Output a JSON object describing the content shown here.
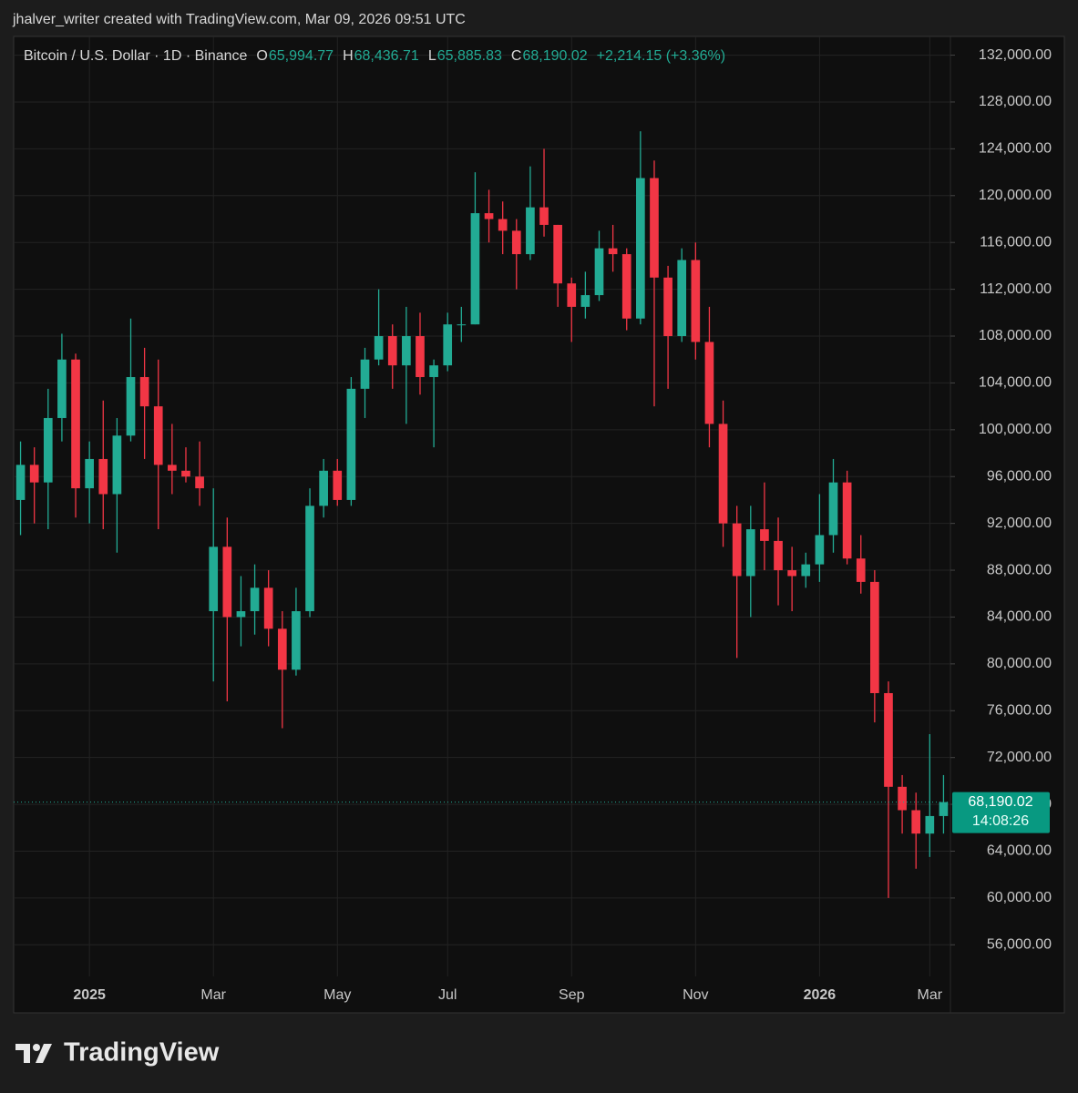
{
  "header": "jhalver_writer created with TradingView.com, Mar 09, 2026 09:51 UTC",
  "brand": "TradingView",
  "legend": {
    "symbol": "Bitcoin / U.S. Dollar · 1D · Binance",
    "items": [
      {
        "key": "O",
        "value": {
          "value": 65994.77,
          "label": "65,994.77"
        }
      },
      {
        "key": "H",
        "value": {
          "value": 68436.71,
          "label": "68,436.71"
        }
      },
      {
        "key": "L",
        "value": {
          "value": 65885.83,
          "label": "65,885.83"
        }
      },
      {
        "key": "C",
        "value": {
          "value": 68190.02,
          "label": "68,190.02"
        }
      }
    ],
    "change": "+2,214.15 (+3.36%)"
  },
  "last_price": {
    "value": 68190.02,
    "label": "68,190.02"
  },
  "countdown": "14:08:26",
  "chart_data": {
    "type": "candlestick",
    "up_color": "#22ab94",
    "down_color": "#f23645",
    "grid": true,
    "categories": [
      null,
      null,
      null,
      null,
      null,
      "2025",
      null,
      null,
      null,
      null,
      null,
      null,
      null,
      null,
      "Mar",
      null,
      null,
      null,
      null,
      null,
      null,
      null,
      null,
      "May",
      null,
      null,
      null,
      null,
      null,
      null,
      null,
      "Jul",
      null,
      null,
      null,
      null,
      null,
      null,
      null,
      null,
      "Sep",
      null,
      null,
      null,
      null,
      null,
      null,
      null,
      null,
      "Nov",
      null,
      null,
      null,
      null,
      null,
      null,
      null,
      null,
      "2026",
      null,
      null,
      null,
      null,
      null,
      null,
      null,
      "Mar",
      null
    ],
    "open": [
      94000,
      97000,
      95500,
      101000,
      106000,
      95000,
      97500,
      94500,
      99500,
      104500,
      102000,
      97000,
      96500,
      96000,
      84500,
      90000,
      84000,
      84500,
      86500,
      83000,
      79500,
      84500,
      93500,
      96500,
      94000,
      103500,
      106000,
      108000,
      105500,
      108000,
      104500,
      105500,
      109000,
      109000,
      118500,
      118000,
      117000,
      115000,
      119000,
      117500,
      112500,
      110500,
      111500,
      115500,
      115000,
      109500,
      121500,
      113000,
      108000,
      114500,
      107500,
      100500,
      92000,
      87500,
      91500,
      90500,
      88000,
      87500,
      88500,
      91000,
      95500,
      89000,
      87000,
      77500,
      69500,
      67500,
      65500,
      67000
    ],
    "high": [
      99000,
      98500,
      103500,
      108200,
      106500,
      99000,
      102500,
      101000,
      109500,
      107000,
      106000,
      100500,
      98500,
      99000,
      95000,
      92500,
      87500,
      88500,
      88000,
      84500,
      86500,
      95000,
      97500,
      97500,
      104500,
      107000,
      112000,
      109000,
      110500,
      110000,
      106000,
      110000,
      110500,
      122000,
      120500,
      119500,
      118000,
      122500,
      124000,
      117500,
      113000,
      113500,
      117000,
      117500,
      115500,
      125500,
      123000,
      114000,
      115500,
      116000,
      110500,
      102500,
      93500,
      93500,
      95500,
      92500,
      90000,
      89500,
      94500,
      97500,
      96500,
      91000,
      88000,
      78500,
      70500,
      69000,
      74000,
      70500
    ],
    "low": [
      91000,
      92000,
      91500,
      99000,
      92500,
      92000,
      91500,
      89500,
      99000,
      97500,
      91500,
      94500,
      95500,
      93500,
      78500,
      76800,
      81500,
      82500,
      81500,
      74500,
      79000,
      84000,
      92500,
      93500,
      93500,
      101000,
      105500,
      103500,
      100500,
      103000,
      98500,
      105000,
      107500,
      109000,
      116000,
      115000,
      112000,
      114500,
      116500,
      110500,
      107500,
      109500,
      111000,
      113500,
      108500,
      109000,
      102000,
      103500,
      107500,
      106000,
      98500,
      90000,
      80500,
      84000,
      88000,
      85000,
      84500,
      86500,
      87000,
      89500,
      88500,
      86000,
      75000,
      60000,
      65500,
      62500,
      63500,
      65500
    ],
    "close": [
      97000,
      95500,
      101000,
      106000,
      95000,
      97500,
      94500,
      99500,
      104500,
      102000,
      97000,
      96500,
      96000,
      95000,
      90000,
      84000,
      84500,
      86500,
      83000,
      79500,
      84500,
      93500,
      96500,
      94000,
      103500,
      106000,
      108000,
      105500,
      108000,
      104500,
      105500,
      109000,
      109000,
      118500,
      118000,
      117000,
      115000,
      119000,
      117500,
      112500,
      110500,
      111500,
      115500,
      115000,
      109500,
      121500,
      113000,
      108000,
      114500,
      107500,
      100500,
      92000,
      87500,
      91500,
      90500,
      88000,
      87500,
      88500,
      91000,
      95500,
      89000,
      87000,
      77500,
      69500,
      67500,
      65500,
      67000,
      68190.02
    ],
    "ylim": [
      53300,
      133600
    ],
    "yticks": [
      {
        "value": 56000,
        "label": "56,000.00"
      },
      {
        "value": 60000,
        "label": "60,000.00"
      },
      {
        "value": 64000,
        "label": "64,000.00"
      },
      {
        "value": 68000,
        "label": "68,000.00"
      },
      {
        "value": 72000,
        "label": "72,000.00"
      },
      {
        "value": 76000,
        "label": "76,000.00"
      },
      {
        "value": 80000,
        "label": "80,000.00"
      },
      {
        "value": 84000,
        "label": "84,000.00"
      },
      {
        "value": 88000,
        "label": "88,000.00"
      },
      {
        "value": 92000,
        "label": "92,000.00"
      },
      {
        "value": 96000,
        "label": "96,000.00"
      },
      {
        "value": 100000,
        "label": "100,000.00"
      },
      {
        "value": 104000,
        "label": "104,000.00"
      },
      {
        "value": 108000,
        "label": "108,000.00"
      },
      {
        "value": 112000,
        "label": "112,000.00"
      },
      {
        "value": 116000,
        "label": "116,000.00"
      },
      {
        "value": 120000,
        "label": "120,000.00"
      },
      {
        "value": 124000,
        "label": "124,000.00"
      },
      {
        "value": 128000,
        "label": "128,000.00"
      },
      {
        "value": 132000,
        "label": "132,000.00"
      }
    ]
  }
}
